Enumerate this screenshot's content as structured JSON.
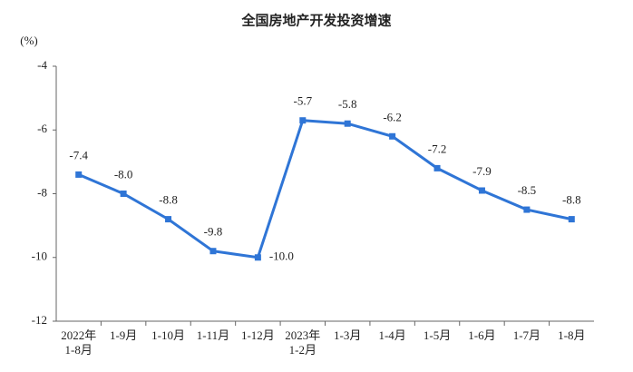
{
  "chart_data": {
    "type": "line",
    "title": "全国房地产开发投资增速",
    "y_unit": "(%)",
    "categories": [
      "2022年\n1-8月",
      "1-9月",
      "1-10月",
      "1-11月",
      "1-12月",
      "2023年\n1-2月",
      "1-3月",
      "1-4月",
      "1-5月",
      "1-6月",
      "1-7月",
      "1-8月"
    ],
    "values": [
      -7.4,
      -8.0,
      -8.8,
      -9.8,
      -10.0,
      -5.7,
      -5.8,
      -6.2,
      -7.2,
      -7.9,
      -8.5,
      -8.8
    ],
    "value_labels": [
      "-7.4",
      "-8.0",
      "-8.8",
      "-9.8",
      "-10.0",
      "-5.7",
      "-5.8",
      "-6.2",
      "-7.2",
      "-7.9",
      "-8.5",
      "-8.8"
    ],
    "color": "#2f75d6",
    "ylim": [
      -12,
      -4
    ],
    "yticks": [
      -4,
      -6,
      -8,
      -10,
      -12
    ],
    "grid": false
  }
}
